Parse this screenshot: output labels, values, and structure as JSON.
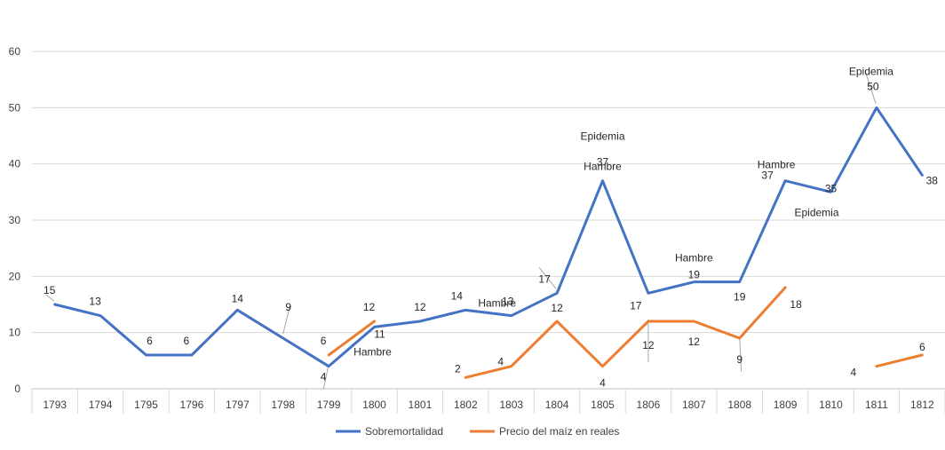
{
  "chart_data": {
    "type": "line",
    "title": "",
    "xlabel": "",
    "ylabel": "",
    "ylim": [
      0,
      60
    ],
    "yticks": [
      0,
      10,
      20,
      30,
      40,
      50,
      60
    ],
    "grid": true,
    "legend_position": "bottom",
    "categories": [
      "1793",
      "1794",
      "1795",
      "1796",
      "1797",
      "1798",
      "1799",
      "1800",
      "1801",
      "1802",
      "1803",
      "1804",
      "1805",
      "1806",
      "1807",
      "1808",
      "1809",
      "1810",
      "1811",
      "1812"
    ],
    "series": [
      {
        "name": "Sobremortalidad",
        "color": "#4472C4",
        "values": [
          15,
          13,
          6,
          6,
          14,
          9,
          4,
          11,
          12,
          14,
          13,
          17,
          37,
          17,
          19,
          19,
          37,
          35,
          50,
          38
        ]
      },
      {
        "name": "Precio del maíz en reales",
        "color": "#ED7D31",
        "values": [
          null,
          null,
          null,
          null,
          null,
          null,
          6,
          12,
          null,
          2,
          4,
          12,
          4,
          12,
          12,
          9,
          18,
          null,
          4,
          6
        ]
      }
    ],
    "annotations": [
      {
        "text": "Hambre",
        "year": "1800",
        "series": "Sobremortalidad"
      },
      {
        "text": "Hambre",
        "year": "1803",
        "series": "Sobremortalidad"
      },
      {
        "text": "Epidemia",
        "year": "1805",
        "series": "Sobremortalidad"
      },
      {
        "text": "Hambre",
        "year": "1805",
        "series": "Sobremortalidad"
      },
      {
        "text": "Hambre",
        "year": "1807",
        "series": "Sobremortalidad"
      },
      {
        "text": "Hambre",
        "year": "1809",
        "series": "Sobremortalidad"
      },
      {
        "text": "Epidemia",
        "year": "1810",
        "series": "Sobremortalidad"
      },
      {
        "text": "Epidemia",
        "year": "1811",
        "series": "Sobremortalidad"
      }
    ]
  }
}
